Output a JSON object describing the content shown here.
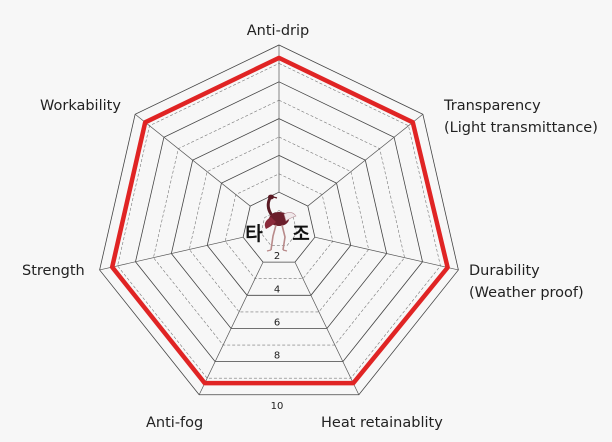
{
  "chart_data": {
    "type": "radar",
    "axes": [
      [
        "Anti-drip"
      ],
      [
        "Transparency",
        "(Light transmittance)"
      ],
      [
        "Durability",
        "(Weather proof)"
      ],
      [
        "Heat retainablity"
      ],
      [
        "Anti-fog"
      ],
      [
        "Strength"
      ],
      [
        "Workability"
      ]
    ],
    "series": [
      {
        "values": [
          9.3,
          9.3,
          9.4,
          9.3,
          9.3,
          9.3,
          9.3
        ],
        "color": "#e02424"
      }
    ],
    "rlim": [
      0,
      10
    ],
    "ticks": [
      2,
      4,
      6,
      8,
      10
    ],
    "grid_step": 1,
    "grid": true,
    "center_text": [
      "타",
      "조"
    ],
    "center_icon": "ostrich-logo-icon"
  }
}
